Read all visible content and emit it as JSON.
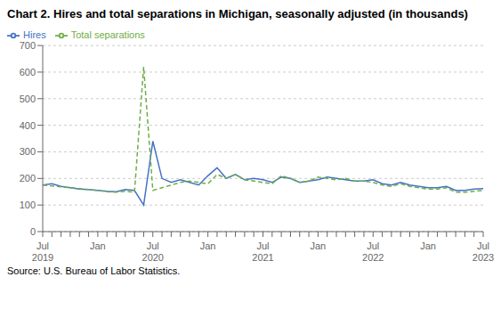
{
  "chart_data": {
    "type": "line",
    "title": "Chart 2. Hires and total separations in Michigan, seasonally adjusted (in thousands)",
    "source": "Source: U.S. Bureau of Labor Statistics.",
    "categories": [
      "Jul 2019",
      null,
      null,
      null,
      null,
      null,
      "Jan",
      null,
      null,
      null,
      null,
      null,
      "Jul 2020",
      null,
      null,
      null,
      null,
      null,
      "Jan",
      null,
      null,
      null,
      null,
      null,
      "Jul 2021",
      null,
      null,
      null,
      null,
      null,
      "Jan",
      null,
      null,
      null,
      null,
      null,
      "Jul 2022",
      null,
      null,
      null,
      null,
      null,
      "Jan",
      null,
      null,
      null,
      null,
      null,
      "Jul 2023"
    ],
    "series": [
      {
        "name": "Hires",
        "color": "#4472c4",
        "line_style": "solid",
        "values": [
          175,
          180,
          170,
          165,
          160,
          158,
          155,
          152,
          150,
          158,
          155,
          100,
          340,
          200,
          185,
          195,
          185,
          175,
          210,
          240,
          200,
          215,
          195,
          200,
          195,
          185,
          205,
          200,
          185,
          190,
          195,
          205,
          200,
          195,
          190,
          190,
          195,
          180,
          175,
          185,
          175,
          170,
          165,
          165,
          170,
          155,
          155,
          160,
          162
        ]
      },
      {
        "name": "Total separations",
        "color": "#70ad47",
        "line_style": "dashed",
        "values": [
          175,
          172,
          168,
          165,
          162,
          158,
          155,
          150,
          148,
          152,
          148,
          620,
          155,
          165,
          175,
          185,
          190,
          185,
          180,
          215,
          200,
          215,
          195,
          190,
          185,
          180,
          210,
          200,
          185,
          190,
          205,
          200,
          195,
          200,
          190,
          190,
          185,
          175,
          170,
          180,
          170,
          165,
          160,
          160,
          165,
          148,
          148,
          152,
          155
        ]
      }
    ],
    "ylim": [
      0,
      700
    ],
    "yticks": [
      0,
      100,
      200,
      300,
      400,
      500,
      600,
      700
    ],
    "grid": true,
    "legend": "upper left"
  }
}
